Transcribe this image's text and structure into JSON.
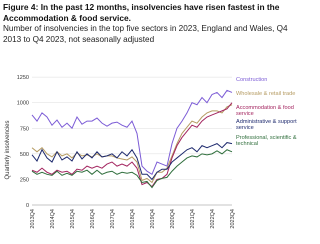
{
  "chart_data": {
    "type": "line",
    "title": "Figure 4: In the past 12 months, insolvencies have risen fastest in the Accommodation & food service.",
    "subtitle": "Number of insolvencies in the top five sectors in 2023, England and Wales, Q4 2013 to Q4 2023, not seasonally adjusted",
    "y_label": "Quarterly insolvencies",
    "categories": [
      "2013Q4",
      null,
      null,
      null,
      "2014Q4",
      null,
      null,
      null,
      "2015Q4",
      null,
      null,
      null,
      "2016Q4",
      null,
      null,
      null,
      "2017Q4",
      null,
      null,
      null,
      "2018Q4",
      null,
      null,
      null,
      "2019Q4",
      null,
      null,
      null,
      "2020Q4",
      null,
      null,
      null,
      "2021Q4",
      null,
      null,
      null,
      "2022Q4",
      null,
      null,
      null,
      "2023Q4"
    ],
    "ylim": [
      0,
      1300
    ],
    "yticks": [
      0,
      250,
      500,
      750,
      1000,
      1250
    ],
    "series": [
      {
        "name": "Construction",
        "color": "#7c5cd6",
        "values": [
          880,
          820,
          900,
          860,
          780,
          830,
          760,
          800,
          750,
          860,
          790,
          820,
          820,
          850,
          800,
          770,
          800,
          810,
          780,
          760,
          820,
          700,
          380,
          330,
          300,
          420,
          400,
          380,
          600,
          750,
          820,
          900,
          1000,
          980,
          1050,
          1000,
          1080,
          1100,
          1050,
          1120,
          1100
        ]
      },
      {
        "name": "Wholesale & retail trade",
        "color": "#b59b62",
        "values": [
          560,
          520,
          560,
          500,
          470,
          520,
          480,
          500,
          460,
          510,
          480,
          490,
          470,
          500,
          470,
          480,
          480,
          460,
          450,
          440,
          470,
          420,
          240,
          260,
          220,
          320,
          320,
          360,
          480,
          600,
          700,
          760,
          820,
          800,
          860,
          900,
          920,
          920,
          900,
          960,
          980
        ]
      },
      {
        "name": "Accommodation & food service",
        "color": "#a3245f",
        "values": [
          340,
          320,
          360,
          320,
          300,
          340,
          320,
          330,
          300,
          350,
          340,
          380,
          360,
          380,
          360,
          400,
          420,
          380,
          400,
          380,
          420,
          360,
          200,
          220,
          180,
          250,
          260,
          300,
          460,
          580,
          660,
          720,
          780,
          760,
          820,
          860,
          880,
          900,
          920,
          940,
          1000
        ]
      },
      {
        "name": "Administrative & support service",
        "color": "#1e2a6e",
        "values": [
          490,
          430,
          540,
          460,
          420,
          520,
          440,
          470,
          430,
          520,
          450,
          500,
          460,
          520,
          470,
          480,
          500,
          460,
          520,
          480,
          540,
          460,
          300,
          300,
          250,
          320,
          350,
          350,
          420,
          460,
          500,
          540,
          560,
          520,
          580,
          560,
          580,
          600,
          560,
          610,
          600
        ]
      },
      {
        "name": "Professional, scientific & technical",
        "color": "#2f6e3c",
        "values": [
          330,
          300,
          320,
          300,
          290,
          330,
          290,
          310,
          290,
          330,
          320,
          340,
          300,
          340,
          300,
          320,
          330,
          300,
          320,
          310,
          320,
          290,
          220,
          230,
          170,
          240,
          260,
          270,
          330,
          380,
          420,
          460,
          480,
          470,
          500,
          490,
          500,
          530,
          500,
          540,
          520
        ]
      }
    ]
  }
}
